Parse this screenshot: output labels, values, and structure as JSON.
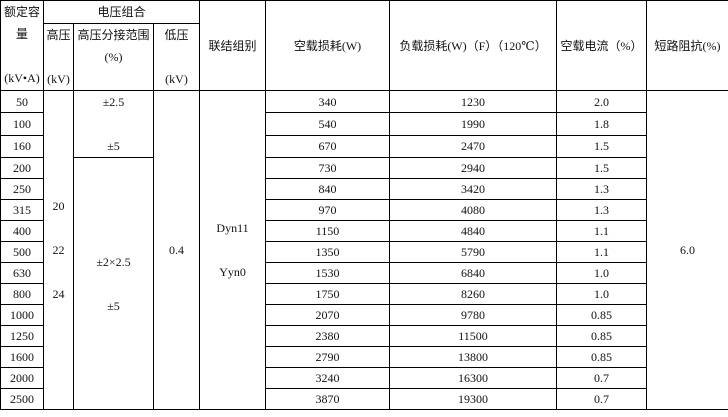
{
  "headers": {
    "capacity": "额定容量",
    "capacity_unit": "(kV•A)",
    "voltage_group": "电压组合",
    "hv": "高压",
    "hv_unit": "(kV)",
    "tap": "高压分接范围",
    "tap_unit": "(%)",
    "lv": "低压",
    "lv_unit": "(kV)",
    "vector": "联结组别",
    "noload_loss": "空载损耗(W)",
    "load_loss": "负载损耗(W)（F）（120℃）",
    "noload_current": "空载电流（%）",
    "impedance": "短路阻抗(%)"
  },
  "hv_values": [
    "20",
    "22",
    "24"
  ],
  "tap_group1": [
    "±2.5",
    "±5"
  ],
  "tap_group2": [
    "±2×2.5",
    "±5"
  ],
  "lv_value": "0.4",
  "vector_values": [
    "Dyn11",
    "Yyn0"
  ],
  "impedance_value": "6.0",
  "rows": [
    [
      "50",
      "340",
      "1230",
      "2.0"
    ],
    [
      "100",
      "540",
      "1990",
      "1.8"
    ],
    [
      "160",
      "670",
      "2470",
      "1.5"
    ],
    [
      "200",
      "730",
      "2940",
      "1.5"
    ],
    [
      "250",
      "840",
      "3420",
      "1.3"
    ],
    [
      "315",
      "970",
      "4080",
      "1.3"
    ],
    [
      "400",
      "1150",
      "4840",
      "1.1"
    ],
    [
      "500",
      "1350",
      "5790",
      "1.1"
    ],
    [
      "630",
      "1530",
      "6840",
      "1.0"
    ],
    [
      "800",
      "1750",
      "8260",
      "1.0"
    ],
    [
      "1000",
      "2070",
      "9780",
      "0.85"
    ],
    [
      "1250",
      "2380",
      "11500",
      "0.85"
    ],
    [
      "1600",
      "2790",
      "13800",
      "0.85"
    ],
    [
      "2000",
      "3240",
      "16300",
      "0.7"
    ],
    [
      "2500",
      "3870",
      "19300",
      "0.7"
    ]
  ]
}
